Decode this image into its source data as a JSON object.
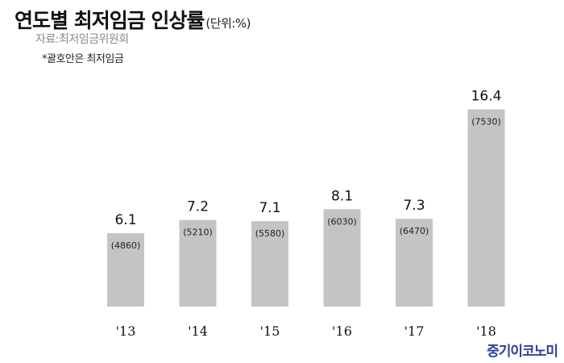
{
  "header": {
    "title": "연도별 최저임금 인상률",
    "unit": "(단위:%)",
    "source": "자료:최저임금위원회",
    "note": "*괄호안은 최저임금"
  },
  "brand": "중기이코노미",
  "colors": {
    "bar": "#c4c4c4",
    "brand": "#2f3f9a",
    "text": "#111111"
  },
  "chart_data": {
    "type": "bar",
    "title": "연도별 최저임금 인상률",
    "categories": [
      "'13",
      "'14",
      "'15",
      "'16",
      "'17",
      "'18"
    ],
    "values": [
      6.1,
      7.2,
      7.1,
      8.1,
      7.3,
      16.4
    ],
    "value_labels": [
      "6.1",
      "7.2",
      "7.1",
      "8.1",
      "7.3",
      "16.4"
    ],
    "annotations": [
      "(4860)",
      "(5210)",
      "(5580)",
      "(6030)",
      "(6470)",
      "(7530)"
    ],
    "xlabel": "",
    "ylabel": "",
    "grid": false,
    "legend": "none"
  }
}
